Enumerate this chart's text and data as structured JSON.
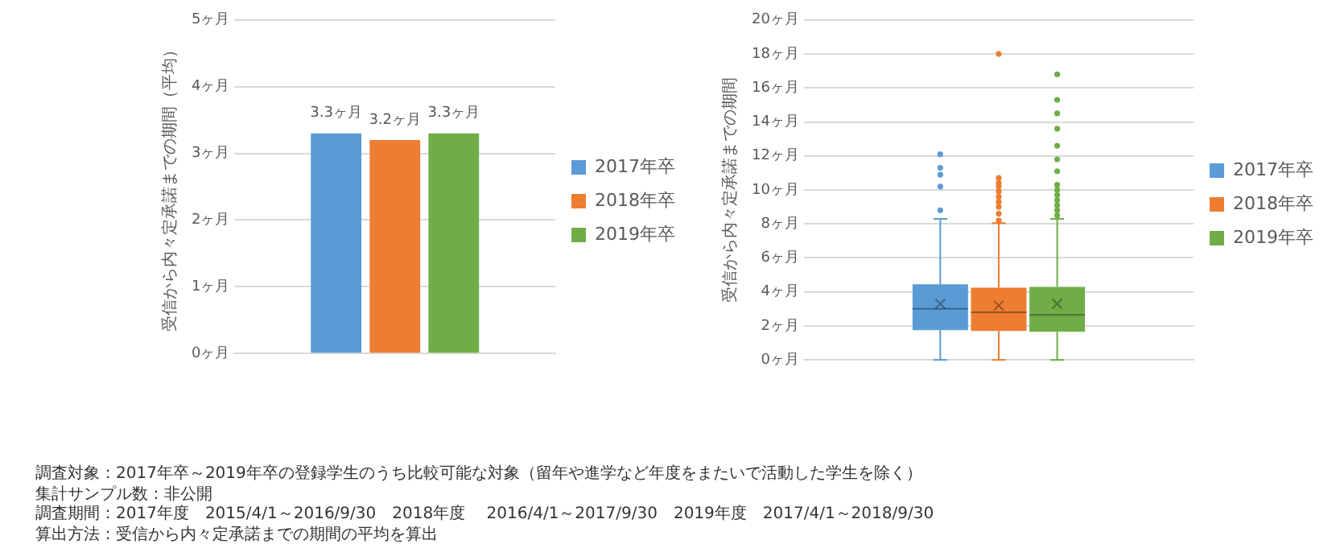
{
  "chart_data": [
    {
      "type": "bar",
      "ylabel": "受信から内々定承諾までの期間（平均）",
      "categories": [
        null
      ],
      "ylim": [
        0,
        5
      ],
      "yticks": [
        {
          "value": 0,
          "label": "0ヶ月"
        },
        {
          "value": 1,
          "label": "1ヶ月"
        },
        {
          "value": 2,
          "label": "2ヶ月"
        },
        {
          "value": 3,
          "label": "3ヶ月"
        },
        {
          "value": 4,
          "label": "4ヶ月"
        },
        {
          "value": 5,
          "label": "5ヶ月"
        }
      ],
      "grid": "y",
      "legend": "right",
      "series": [
        {
          "name": "2017年卒",
          "color": "#5b9bd5",
          "values": [
            3.3
          ],
          "value_labels": [
            "3.3ヶ月"
          ]
        },
        {
          "name": "2018年卒",
          "color": "#ed7d31",
          "values": [
            3.2
          ],
          "value_labels": [
            "3.2ヶ月"
          ]
        },
        {
          "name": "2019年卒",
          "color": "#70ad47",
          "values": [
            3.3
          ],
          "value_labels": [
            "3.3ヶ月"
          ]
        }
      ]
    },
    {
      "type": "box",
      "ylabel": "受信から内々定承諾までの期間",
      "categories": [
        null
      ],
      "ylim": [
        0,
        20
      ],
      "yticks": [
        {
          "value": 0,
          "label": "0ヶ月"
        },
        {
          "value": 2,
          "label": "2ヶ月"
        },
        {
          "value": 4,
          "label": "4ヶ月"
        },
        {
          "value": 6,
          "label": "6ヶ月"
        },
        {
          "value": 8,
          "label": "8ヶ月"
        },
        {
          "value": 10,
          "label": "10ヶ月"
        },
        {
          "value": 12,
          "label": "12ヶ月"
        },
        {
          "value": 14,
          "label": "14ヶ月"
        },
        {
          "value": 16,
          "label": "16ヶ月"
        },
        {
          "value": 18,
          "label": "18ヶ月"
        },
        {
          "value": 20,
          "label": "20ヶ月"
        }
      ],
      "grid": "y",
      "legend": "right",
      "series": [
        {
          "name": "2017年卒",
          "color": "#5b9bd5",
          "boxes": [
            {
              "low": 0,
              "q1": 1.75,
              "median": 3.0,
              "q3": 4.45,
              "high": 8.3,
              "mean": 3.3,
              "outliers": [
                8.8,
                10.2,
                10.9,
                11.3,
                12.1
              ]
            }
          ]
        },
        {
          "name": "2018年卒",
          "color": "#ed7d31",
          "boxes": [
            {
              "low": 0,
              "q1": 1.7,
              "median": 2.8,
              "q3": 4.25,
              "high": 8.05,
              "mean": 3.2,
              "outliers": [
                8.2,
                8.6,
                9.0,
                9.3,
                9.6,
                9.9,
                10.2,
                10.4,
                10.7,
                18
              ]
            }
          ]
        },
        {
          "name": "2019年卒",
          "color": "#70ad47",
          "boxes": [
            {
              "low": 0,
              "q1": 1.65,
              "median": 2.65,
              "q3": 4.3,
              "high": 8.3,
              "mean": 3.3,
              "outliers": [
                8.5,
                8.8,
                9.1,
                9.4,
                9.7,
                10.0,
                10.3,
                11.1,
                11.8,
                12.6,
                13.6,
                14.5,
                15.3,
                16.8
              ]
            }
          ]
        }
      ]
    },
    {
      "type": "other",
      "annotations": [
        "調査対象：2017年卒～2019年卒の登録学生のうち比較可能な対象（留年や進学など年度をまたいで活動した学生を除く）",
        "集計サンプル数：非公開",
        "調査期間：2017年度　2015/4/1～2016/9/30　2018年度　 2016/4/1～2017/9/30　2019年度　2017/4/1～2018/9/30",
        "算出方法：受信から内々定承諾までの期間の平均を算出"
      ]
    }
  ]
}
